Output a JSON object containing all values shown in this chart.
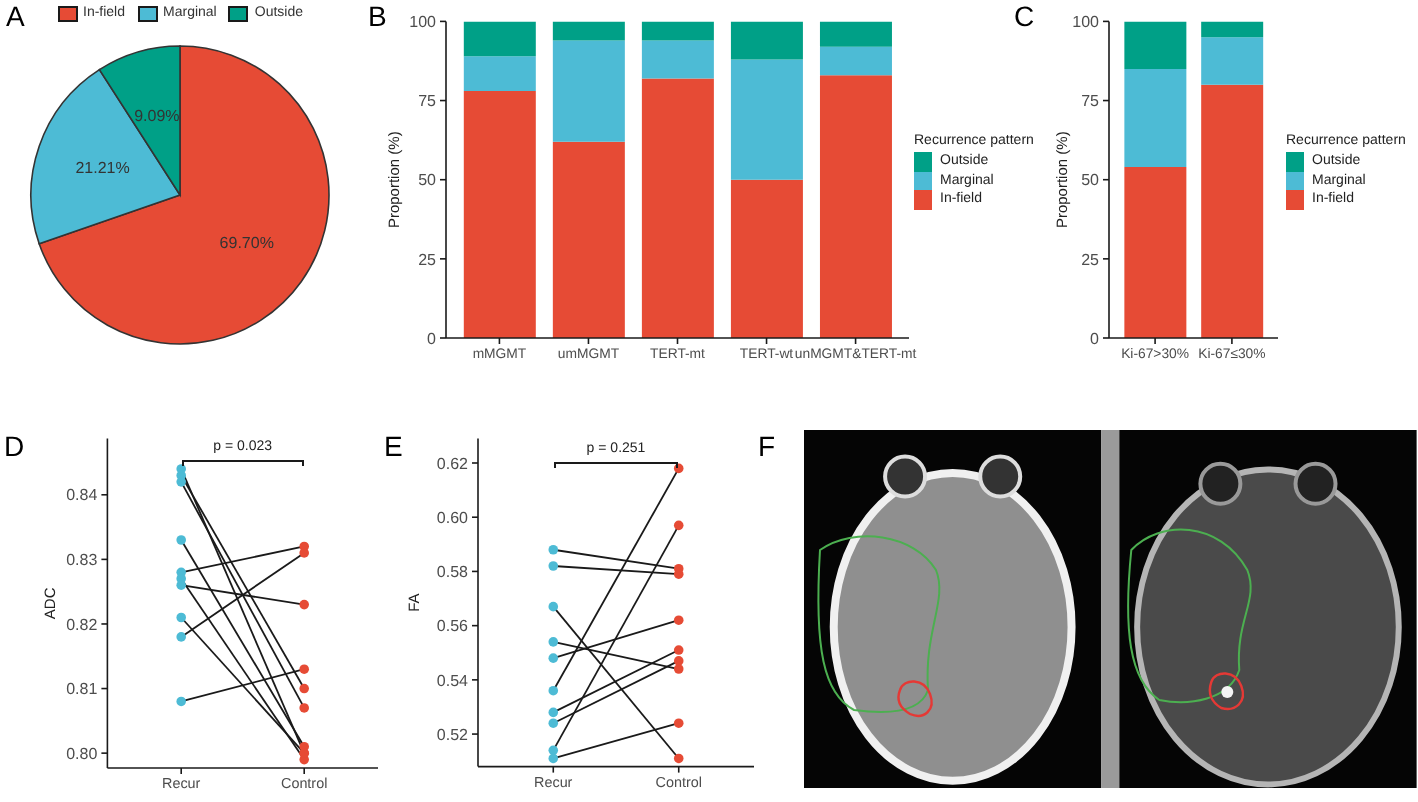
{
  "chart_data": [
    {
      "type": "pie",
      "title": "A",
      "categories": [
        "In-field",
        "Marginal",
        "Outside"
      ],
      "values": [
        69.7,
        21.21,
        9.09
      ],
      "colors": [
        "#e64b35",
        "#4dbbd5",
        "#00a087"
      ],
      "value_labels": [
        "69.70%",
        "21.21%",
        "9.09%"
      ],
      "legend": "top"
    },
    {
      "type": "bar",
      "title": "B",
      "ylabel": "Proportion (%)",
      "categories": [
        "mMGMT",
        "umMGMT",
        "TERT-mt",
        "TERT-wt",
        "unMGMT&TERT-mt"
      ],
      "stacked": true,
      "series": [
        {
          "name": "In-field",
          "color": "#e64b35",
          "values": [
            78,
            62,
            82,
            50,
            83
          ]
        },
        {
          "name": "Marginal",
          "color": "#4dbbd5",
          "values": [
            11,
            32,
            12,
            38,
            9
          ]
        },
        {
          "name": "Outside",
          "color": "#00a087",
          "values": [
            11,
            6,
            6,
            12,
            8
          ]
        }
      ],
      "ylim": [
        0,
        100
      ],
      "yticks": [
        0,
        25,
        50,
        75,
        100
      ],
      "legend": "right",
      "legend_title": "Recurrence pattern"
    },
    {
      "type": "bar",
      "title": "C",
      "ylabel": "Proportion (%)",
      "categories": [
        "Ki-67>30%",
        "Ki-67≤30%"
      ],
      "stacked": true,
      "series": [
        {
          "name": "In-field",
          "color": "#e64b35",
          "values": [
            54,
            80
          ]
        },
        {
          "name": "Marginal",
          "color": "#4dbbd5",
          "values": [
            31,
            15
          ]
        },
        {
          "name": "Outside",
          "color": "#00a087",
          "values": [
            15,
            5
          ]
        }
      ],
      "ylim": [
        0,
        100
      ],
      "yticks": [
        0,
        25,
        50,
        75,
        100
      ],
      "legend": "right",
      "legend_title": "Recurrence pattern"
    },
    {
      "type": "line",
      "title": "D",
      "ylabel": "ADC",
      "categories": [
        "Recur",
        "Control"
      ],
      "series": [
        {
          "color": "#1a1a1a",
          "colors": [
            "#4dbbd5",
            "#e64b35"
          ],
          "values": [
            0.844,
            0.8
          ]
        },
        {
          "color": "#1a1a1a",
          "colors": [
            "#4dbbd5",
            "#e64b35"
          ],
          "values": [
            0.843,
            0.81
          ]
        },
        {
          "color": "#1a1a1a",
          "colors": [
            "#4dbbd5",
            "#e64b35"
          ],
          "values": [
            0.842,
            0.807
          ]
        },
        {
          "color": "#1a1a1a",
          "colors": [
            "#4dbbd5",
            "#e64b35"
          ],
          "values": [
            0.833,
            0.801
          ]
        },
        {
          "color": "#1a1a1a",
          "colors": [
            "#4dbbd5",
            "#e64b35"
          ],
          "values": [
            0.828,
            0.832
          ]
        },
        {
          "color": "#1a1a1a",
          "colors": [
            "#4dbbd5",
            "#e64b35"
          ],
          "values": [
            0.827,
            0.799
          ]
        },
        {
          "color": "#1a1a1a",
          "colors": [
            "#4dbbd5",
            "#e64b35"
          ],
          "values": [
            0.826,
            0.823
          ]
        },
        {
          "color": "#1a1a1a",
          "colors": [
            "#4dbbd5",
            "#e64b35"
          ],
          "values": [
            0.821,
            0.8
          ]
        },
        {
          "color": "#1a1a1a",
          "colors": [
            "#4dbbd5",
            "#e64b35"
          ],
          "values": [
            0.818,
            0.831
          ]
        },
        {
          "color": "#1a1a1a",
          "colors": [
            "#4dbbd5",
            "#e64b35"
          ],
          "values": [
            0.808,
            0.813
          ]
        }
      ],
      "ylim": [
        0.7977,
        0.8487
      ],
      "yticks": [
        {
          "value": 0.8,
          "label": "0.80"
        },
        0.81,
        0.82,
        0.83,
        0.84
      ],
      "marker": "circle",
      "annotations": [
        "p = 0.023"
      ]
    },
    {
      "type": "line",
      "title": "E",
      "ylabel": "FA",
      "categories": [
        "Recur",
        "Control"
      ],
      "series": [
        {
          "color": "#1a1a1a",
          "colors": [
            "#4dbbd5",
            "#e64b35"
          ],
          "values": [
            0.588,
            0.581
          ]
        },
        {
          "color": "#1a1a1a",
          "colors": [
            "#4dbbd5",
            "#e64b35"
          ],
          "values": [
            0.582,
            0.579
          ]
        },
        {
          "color": "#1a1a1a",
          "colors": [
            "#4dbbd5",
            "#e64b35"
          ],
          "values": [
            0.567,
            0.511
          ]
        },
        {
          "color": "#1a1a1a",
          "colors": [
            "#4dbbd5",
            "#e64b35"
          ],
          "values": [
            0.554,
            0.544
          ]
        },
        {
          "color": "#1a1a1a",
          "colors": [
            "#4dbbd5",
            "#e64b35"
          ],
          "values": [
            0.548,
            0.562
          ]
        },
        {
          "color": "#1a1a1a",
          "colors": [
            "#4dbbd5",
            "#e64b35"
          ],
          "values": [
            0.536,
            0.618
          ]
        },
        {
          "color": "#1a1a1a",
          "colors": [
            "#4dbbd5",
            "#e64b35"
          ],
          "values": [
            0.528,
            0.551
          ]
        },
        {
          "color": "#1a1a1a",
          "colors": [
            "#4dbbd5",
            "#e64b35"
          ],
          "values": [
            0.524,
            0.547
          ]
        },
        {
          "color": "#1a1a1a",
          "colors": [
            "#4dbbd5",
            "#e64b35"
          ],
          "values": [
            0.514,
            0.597
          ]
        },
        {
          "color": "#1a1a1a",
          "colors": [
            "#4dbbd5",
            "#e64b35"
          ],
          "values": [
            0.511,
            0.524
          ]
        }
      ],
      "ylim": [
        0.508,
        0.629
      ],
      "yticks": [
        0.52,
        0.54,
        0.56,
        0.58,
        {
          "value": 0.6,
          "label": "0.60"
        },
        0.62
      ],
      "marker": "circle",
      "annotations": [
        "p = 0.251"
      ]
    },
    {
      "type": "other",
      "title": "F"
    }
  ]
}
